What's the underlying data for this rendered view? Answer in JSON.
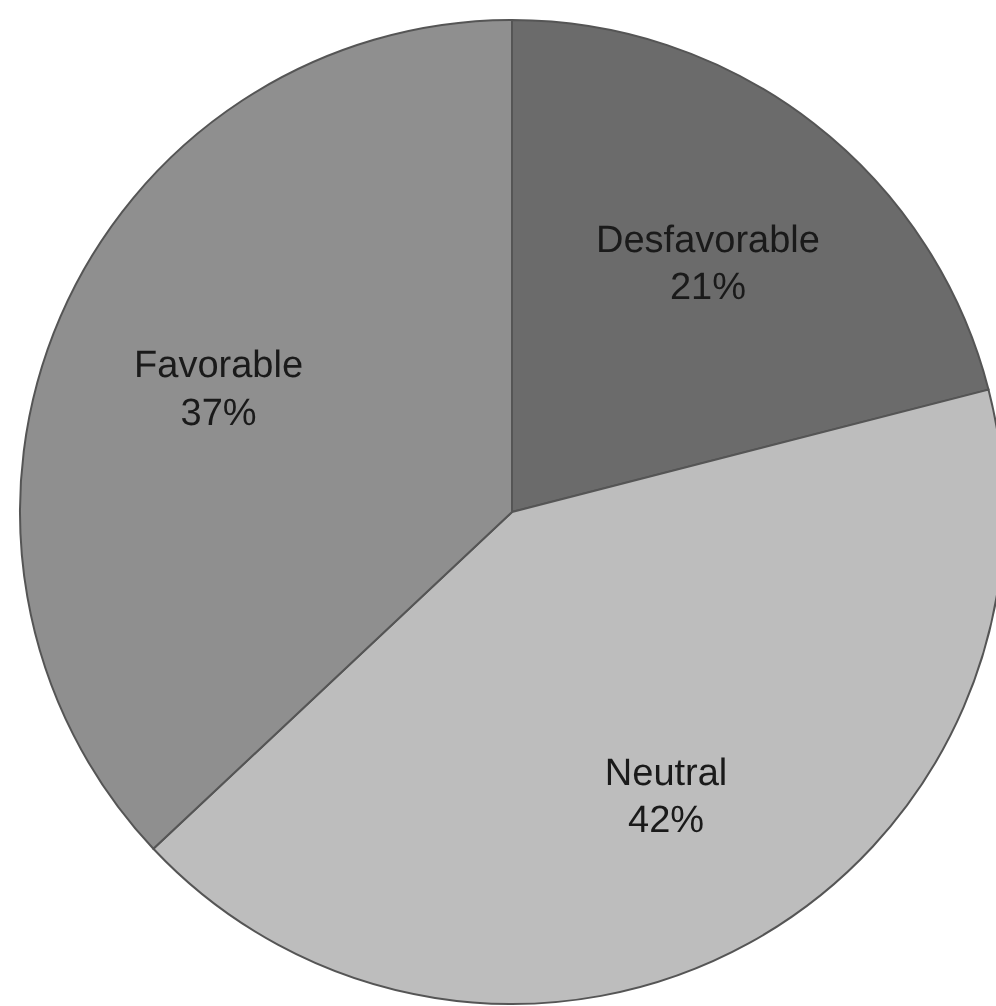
{
  "chart_data": {
    "type": "pie",
    "categories": [
      "Desfavorable",
      "Neutral",
      "Favorable"
    ],
    "values": [
      21,
      42,
      37
    ],
    "value_labels": [
      "21%",
      "42%",
      "37%"
    ],
    "colors": [
      "#6b6b6b",
      "#bdbdbd",
      "#8f8f8f"
    ]
  }
}
